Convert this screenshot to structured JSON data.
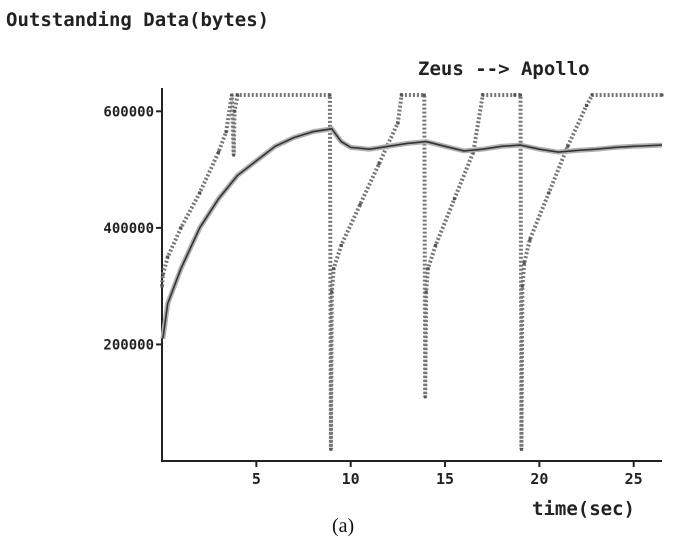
{
  "chart_data": {
    "type": "line",
    "title": "Outstanding Data(bytes)",
    "annotation": "Zeus --> Apollo",
    "xlabel": "time(sec)",
    "caption": "(a)",
    "xlim": [
      0,
      26.5
    ],
    "ylim": [
      0,
      640000
    ],
    "x_ticks": [
      5,
      10,
      15,
      20,
      25
    ],
    "y_ticks": [
      200000,
      400000,
      600000
    ],
    "grid": false,
    "colors": {
      "axis": "#222222",
      "series_dark": "#333333",
      "series_light": "#b0b0b0"
    },
    "series": [
      {
        "id": "outstanding",
        "x": [
          0,
          0.05,
          0.3,
          1.0,
          2.0,
          3.0,
          3.4,
          3.7,
          3.8,
          3.85,
          4.0,
          8.9,
          8.95,
          9.0,
          9.1,
          9.5,
          10.5,
          11.5,
          12.5,
          12.7,
          13.9,
          13.95,
          14.0,
          14.1,
          14.5,
          15.5,
          16.5,
          17.0,
          18.7,
          19.0,
          19.05,
          19.1,
          19.2,
          19.5,
          20.5,
          21.5,
          22.5,
          22.8,
          26.5
        ],
        "y": [
          300000,
          320000,
          350000,
          400000,
          460000,
          530000,
          565000,
          628000,
          525000,
          600000,
          628000,
          628000,
          20000,
          290000,
          330000,
          370000,
          440000,
          510000,
          580000,
          628000,
          628000,
          110000,
          290000,
          330000,
          370000,
          450000,
          530000,
          628000,
          628000,
          628000,
          20000,
          300000,
          340000,
          380000,
          460000,
          540000,
          610000,
          628000,
          628000
        ]
      },
      {
        "id": "average",
        "x": [
          0.05,
          0.3,
          1,
          2,
          3,
          4,
          5,
          6,
          7,
          8,
          9,
          9.5,
          10,
          11,
          12,
          13,
          14,
          15,
          16,
          17,
          18,
          19,
          20,
          21,
          22,
          23,
          24,
          25,
          26.5
        ],
        "y": [
          210000,
          270000,
          330000,
          400000,
          450000,
          490000,
          515000,
          540000,
          555000,
          565000,
          570000,
          548000,
          538000,
          535000,
          540000,
          545000,
          548000,
          540000,
          532000,
          535000,
          540000,
          542000,
          535000,
          530000,
          533000,
          535000,
          538000,
          540000,
          542000
        ]
      }
    ]
  }
}
